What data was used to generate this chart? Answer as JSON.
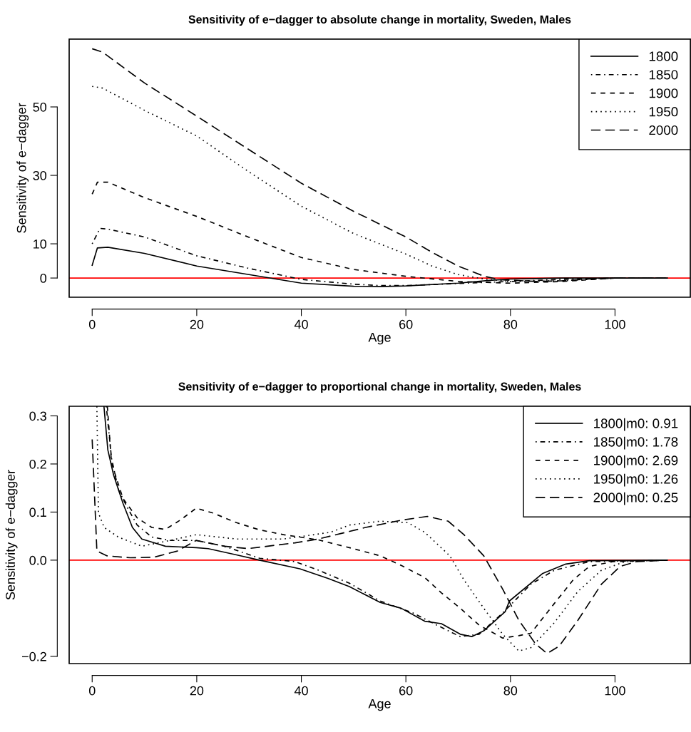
{
  "chart_data": [
    {
      "type": "line",
      "title": "Sensitivity of e−dagger to absolute change in mortality, Sweden, Males",
      "xlabel": "Age",
      "ylabel": "Sensitivity of e−dagger",
      "xlim": [
        -4.4,
        114.4
      ],
      "xticks": [
        0,
        20,
        40,
        60,
        80,
        100
      ],
      "ylim": [
        -5.6,
        69.8
      ],
      "yticks": [
        0,
        10,
        30,
        50
      ],
      "legend": "top right",
      "grid": false,
      "ref_lines": [
        {
          "axis": "y",
          "value": 0,
          "color": "#ff0000",
          "line_style": "solid"
        }
      ],
      "series": [
        {
          "name": "1800",
          "color": "#000000",
          "line_style": "solid",
          "x": [
            0,
            1,
            3,
            10,
            20,
            30,
            40,
            50,
            55,
            60,
            70,
            76,
            80,
            90,
            110
          ],
          "values": [
            3.7,
            8.8,
            9,
            7.2,
            3.5,
            1,
            -1.5,
            -2.4,
            -2.5,
            -2.3,
            -1.5,
            -0.7,
            -0.3,
            0,
            0
          ]
        },
        {
          "name": "1850",
          "color": "#000000",
          "line_style": "dashdot",
          "x": [
            0,
            1.5,
            3,
            10,
            20,
            30,
            40,
            50,
            55,
            60,
            70,
            80,
            90,
            100,
            110
          ],
          "values": [
            10,
            14.5,
            14.3,
            12,
            6.5,
            2.8,
            -0.4,
            -1.8,
            -2.2,
            -2.2,
            -1.6,
            -1,
            -0.4,
            0,
            0
          ]
        },
        {
          "name": "1900",
          "color": "#000000",
          "line_style": "dashed",
          "x": [
            0,
            1,
            3,
            10,
            20,
            30,
            40,
            50,
            60,
            70,
            80,
            90,
            100,
            110
          ],
          "values": [
            24.5,
            28,
            28,
            23.5,
            18,
            11.9,
            6,
            2.5,
            0.5,
            -1,
            -1.5,
            -1,
            0,
            0
          ]
        },
        {
          "name": "1950",
          "color": "#000000",
          "line_style": "dotted",
          "x": [
            0,
            2,
            10,
            20,
            30,
            40,
            50,
            60,
            65,
            70,
            75,
            80,
            90,
            100,
            110
          ],
          "values": [
            56,
            55.5,
            49,
            41.5,
            31,
            21,
            13,
            7,
            3.5,
            1,
            -0.3,
            -1,
            -0.8,
            0,
            0
          ]
        },
        {
          "name": "2000",
          "color": "#000000",
          "line_style": "longdash",
          "x": [
            0,
            2,
            10,
            20,
            30,
            40,
            50,
            60,
            65,
            70,
            75,
            78,
            85,
            90,
            95,
            100,
            110
          ],
          "values": [
            67,
            66,
            57,
            47.3,
            37.5,
            27.7,
            19.5,
            12,
            7.5,
            3.5,
            0.5,
            -0.5,
            -1,
            -0.8,
            -0.3,
            0,
            0
          ]
        }
      ]
    },
    {
      "type": "line",
      "title": "Sensitivity of e−dagger to proportional change in mortality, Sweden, Males",
      "xlabel": "Age",
      "ylabel": "Sensitivity of e−dagger",
      "xlim": [
        -4.4,
        114.4
      ],
      "xticks": [
        0,
        20,
        40,
        60,
        80,
        100
      ],
      "ylim": [
        -0.215,
        0.32
      ],
      "yticks": [
        {
          "value": -0.2,
          "label": "−0.2"
        },
        {
          "value": 0,
          "label": "0.0"
        },
        0.1,
        0.2,
        0.3
      ],
      "legend": "top right",
      "grid": false,
      "ref_lines": [
        {
          "axis": "y",
          "value": 0,
          "color": "#ff0000",
          "line_style": "solid"
        }
      ],
      "series": [
        {
          "name": "1800|m0: 0.91",
          "color": "#000000",
          "line_style": "solid",
          "x": [
            2.25,
            3.0,
            4.1,
            5.9,
            7.7,
            9.5,
            14,
            19.9,
            22.2,
            27.6,
            32,
            39.7,
            45.1,
            49.2,
            55.1,
            59.1,
            63.6,
            66.8,
            70.4,
            72.6,
            74.9,
            79,
            79.8,
            86.1,
            90.6,
            95.1,
            110
          ],
          "values": [
            0.32,
            0.229,
            0.177,
            0.118,
            0.068,
            0.044,
            0.029,
            0.026,
            0.024,
            0.011,
            0,
            -0.018,
            -0.038,
            -0.055,
            -0.088,
            -0.1,
            -0.127,
            -0.132,
            -0.154,
            -0.159,
            -0.147,
            -0.107,
            -0.085,
            -0.028,
            -0.008,
            -0.001,
            0
          ]
        },
        {
          "name": "1850|m0: 1.78",
          "color": "#000000",
          "line_style": "dashdot",
          "x": [
            2.7,
            3.7,
            5,
            6.8,
            8.6,
            11.4,
            15,
            19.9,
            25.3,
            32,
            38.8,
            43.3,
            49.2,
            55.1,
            61.4,
            65.9,
            70.4,
            74,
            78.5,
            83.9,
            88.4,
            95.1,
            110
          ],
          "values": [
            0.32,
            0.212,
            0.147,
            0.108,
            0.073,
            0.048,
            0.041,
            0.041,
            0.029,
            0.004,
            -0.003,
            -0.021,
            -0.048,
            -0.085,
            -0.11,
            -0.135,
            -0.159,
            -0.154,
            -0.11,
            -0.05,
            -0.021,
            -0.003,
            0
          ]
        },
        {
          "name": "1900|m0: 2.69",
          "color": "#000000",
          "line_style": "dashed",
          "x": [
            2.9,
            3.7,
            5.9,
            8.6,
            11.4,
            14,
            16.8,
            19.9,
            23.1,
            27.6,
            32,
            36.6,
            39.7,
            43.3,
            49.2,
            55.1,
            59.1,
            63.6,
            66.8,
            70.4,
            74,
            78.5,
            81.6,
            83.9,
            88.4,
            92,
            95.1,
            99.6,
            110
          ],
          "values": [
            0.32,
            0.202,
            0.128,
            0.088,
            0.068,
            0.064,
            0.083,
            0.108,
            0.098,
            0.078,
            0.063,
            0.053,
            0.048,
            0.042,
            0.026,
            0.009,
            -0.011,
            -0.036,
            -0.068,
            -0.1,
            -0.135,
            -0.162,
            -0.157,
            -0.152,
            -0.09,
            -0.041,
            -0.013,
            -0.003,
            0
          ]
        },
        {
          "name": "1950|m0: 1.26",
          "color": "#000000",
          "line_style": "dotted",
          "x": [
            0.9,
            1.2,
            2.3,
            5,
            9.5,
            14,
            19.9,
            27.6,
            36.6,
            45.6,
            49.2,
            55.1,
            60.4,
            63.6,
            68.4,
            71.1,
            74.9,
            78.5,
            81.6,
            83.9,
            88.4,
            92.9,
            97.4,
            101.9,
            110
          ],
          "values": [
            0.32,
            0.098,
            0.068,
            0.048,
            0.029,
            0.039,
            0.053,
            0.044,
            0.044,
            0.058,
            0.073,
            0.081,
            0.078,
            0.058,
            0.009,
            -0.041,
            -0.1,
            -0.154,
            -0.189,
            -0.182,
            -0.13,
            -0.065,
            -0.021,
            -0.003,
            0
          ]
        },
        {
          "name": "2000|m0: 0.25",
          "color": "#000000",
          "line_style": "longdash",
          "x": [
            0,
            0.9,
            2.8,
            7.3,
            11.8,
            16.3,
            19.9,
            25.3,
            29.8,
            38.8,
            43.3,
            47.8,
            52.3,
            59.1,
            64.1,
            68.1,
            71.1,
            74.9,
            78.5,
            81.6,
            84.8,
            87,
            89.3,
            92.9,
            97.4,
            101,
            104.1,
            110
          ],
          "values": [
            0.251,
            0.019,
            0.009,
            0.005,
            0.006,
            0.019,
            0.041,
            0.029,
            0.024,
            0.036,
            0.044,
            0.056,
            0.068,
            0.083,
            0.091,
            0.081,
            0.053,
            0.009,
            -0.06,
            -0.125,
            -0.174,
            -0.194,
            -0.179,
            -0.125,
            -0.05,
            -0.013,
            -0.003,
            0
          ]
        }
      ]
    }
  ]
}
